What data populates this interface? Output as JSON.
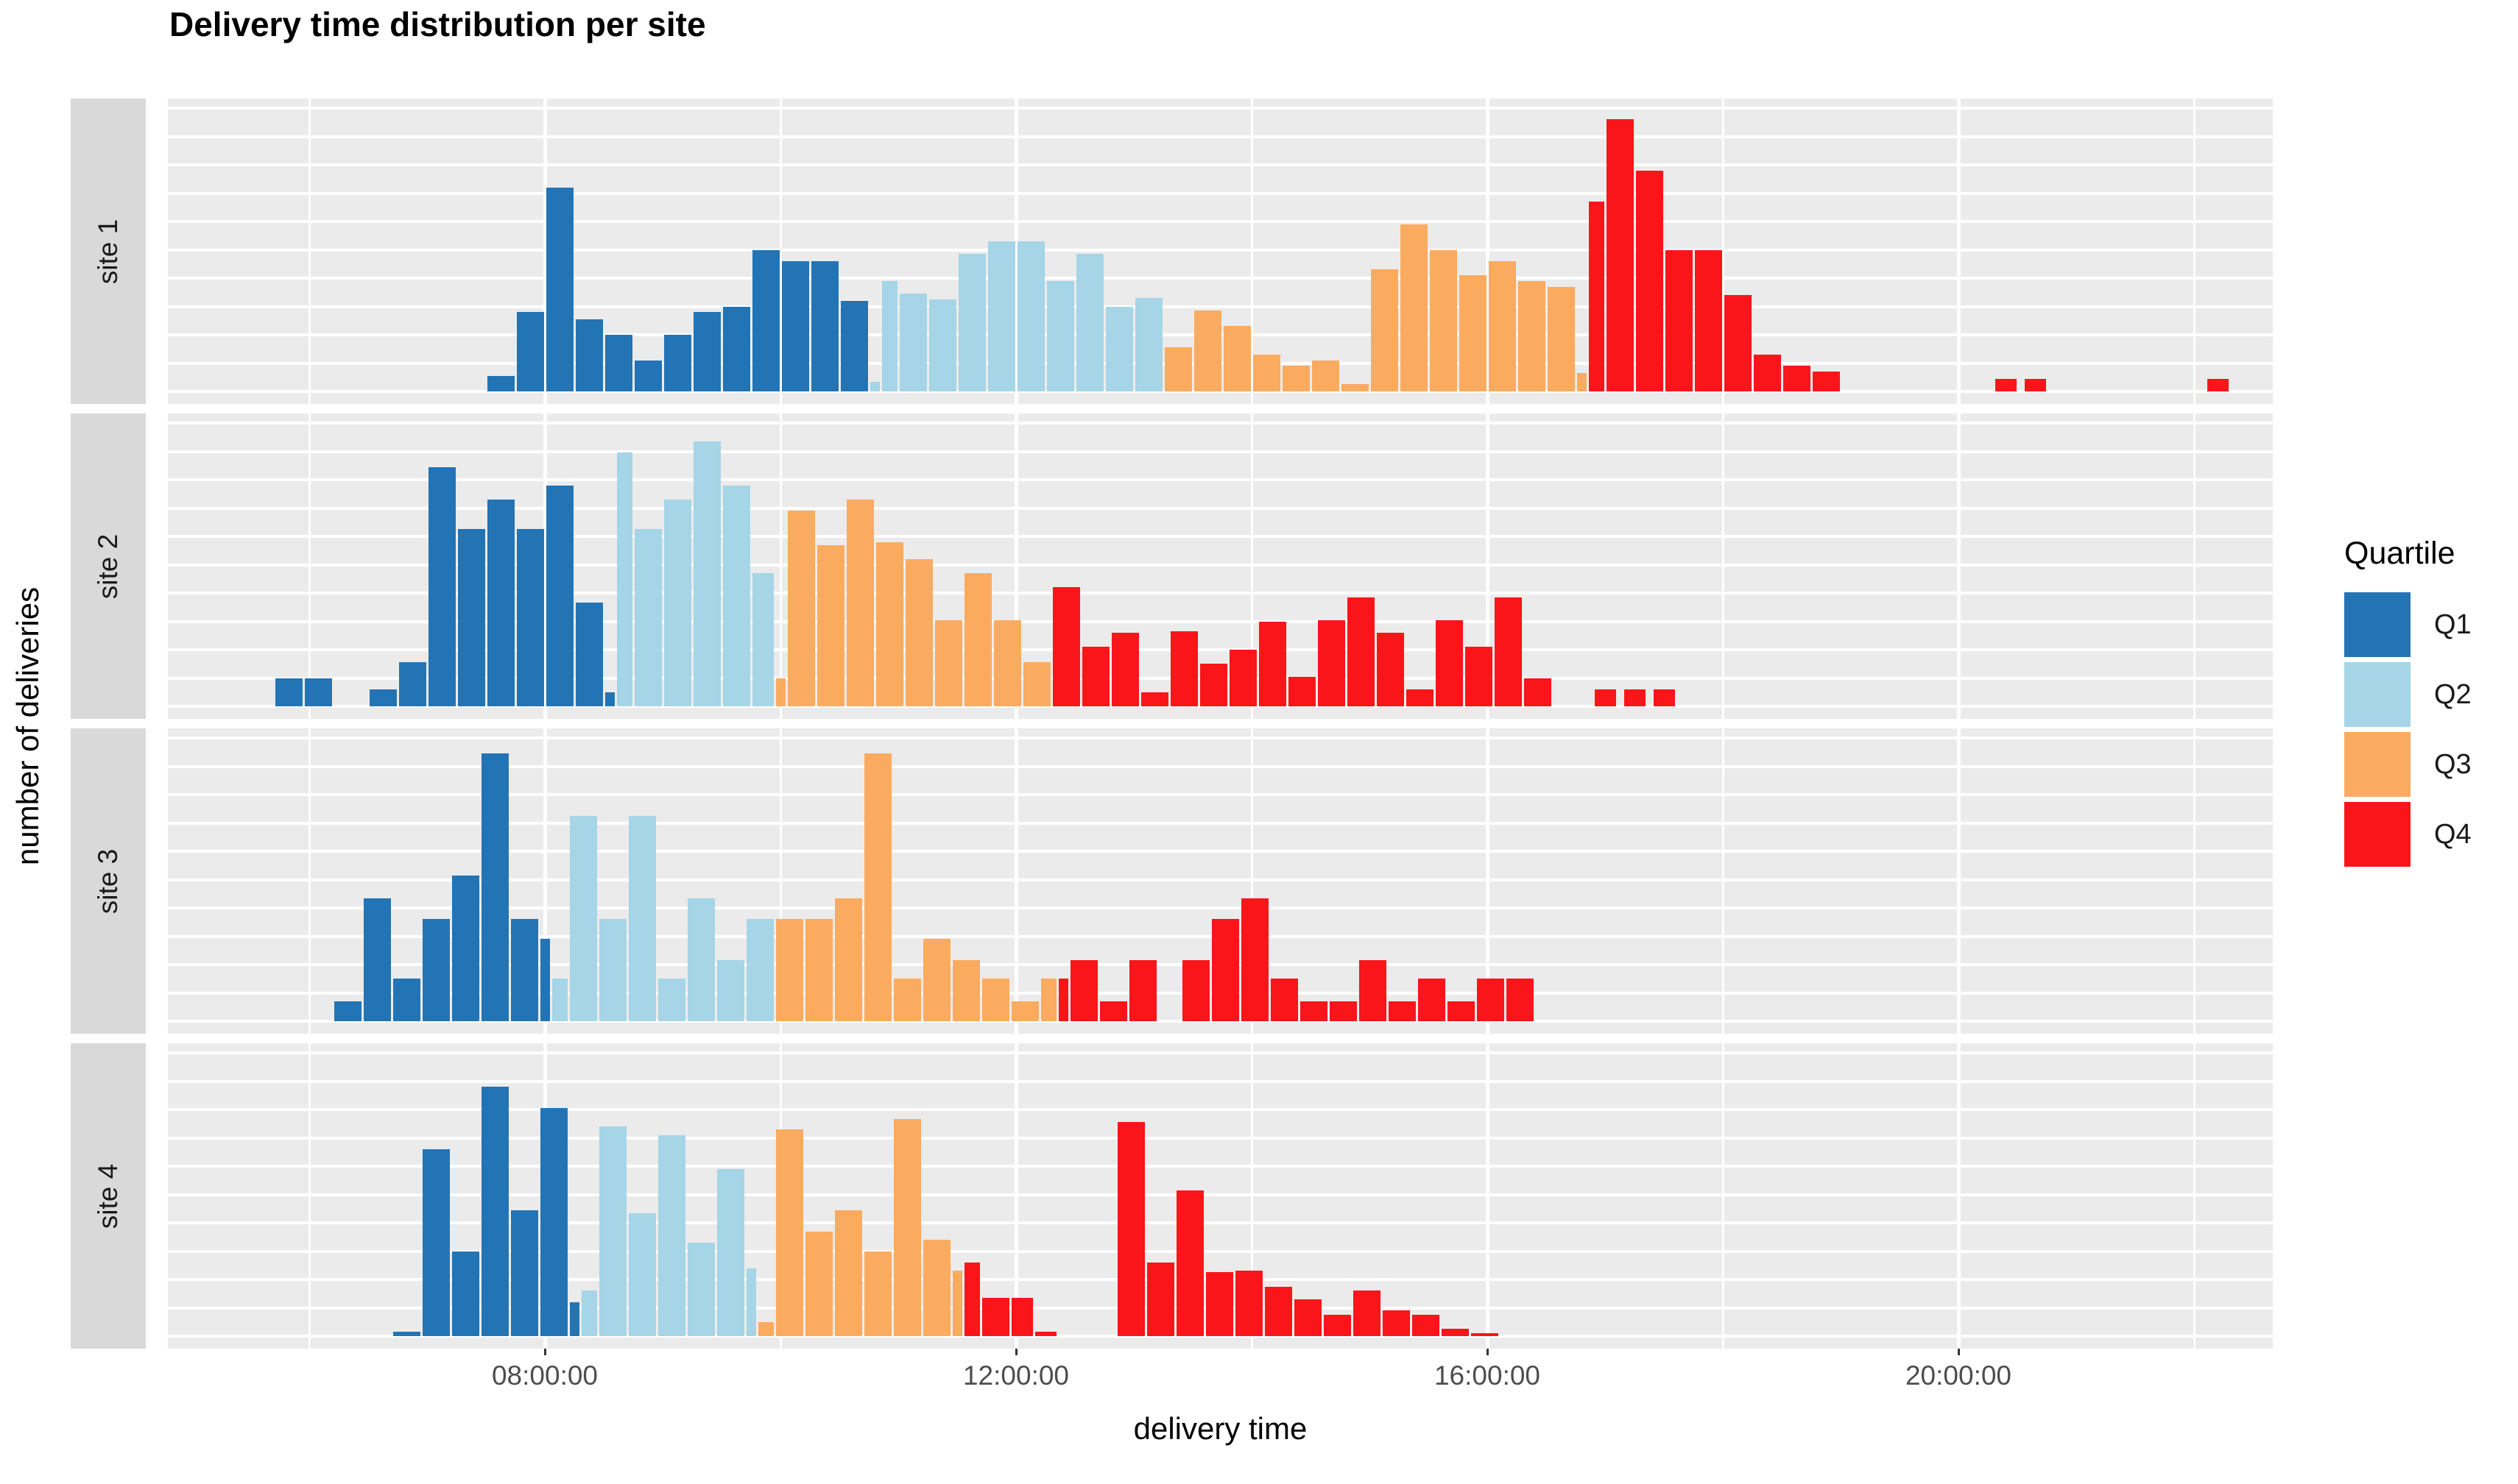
{
  "colors": {
    "panel_bg": "#EBEBEB",
    "strip_bg": "#D9D9D9",
    "gridline": "#FFFFFF",
    "tick_label": "#4D4D4D",
    "q1": "#2374B5",
    "q2": "#A5D5E6",
    "q3": "#FBAB5F",
    "q4": "#F9151A"
  },
  "chart_data": {
    "type": "bar",
    "subtype": "faceted-histogram",
    "title": "Delivery time distribution per site",
    "xlabel": "delivery time",
    "ylabel": "number of deliveries",
    "legend": {
      "title": "Quartile",
      "position": "right",
      "items": [
        {
          "label": "Q1",
          "color_key": "q1"
        },
        {
          "label": "Q2",
          "color_key": "q2"
        },
        {
          "label": "Q3",
          "color_key": "q3"
        },
        {
          "label": "Q4",
          "color_key": "q4"
        }
      ]
    },
    "x_tick_labels": [
      "08:00:00",
      "12:00:00",
      "16:00:00",
      "20:00:00"
    ],
    "x_tick_hours": [
      8,
      12,
      16,
      20
    ],
    "x_domain_hours": [
      4.8,
      22.67
    ],
    "gridlines": {
      "horizontal": "white, evenly spaced, no y tick labels shown",
      "vertical_every_hours": 2
    },
    "bin_minutes": 15,
    "bar_format": "[start_hour, width_hours, height_relative_units, quartile] ; 10 units = full panel height (y axis has no printed tick labels)",
    "facets": [
      {
        "site": "site 1",
        "bars": [
          [
            7.5,
            0.25,
            0.55,
            "Q1"
          ],
          [
            7.75,
            0.25,
            2.8,
            "Q1"
          ],
          [
            8.0,
            0.25,
            7.2,
            "Q1"
          ],
          [
            8.25,
            0.25,
            2.55,
            "Q1"
          ],
          [
            8.5,
            0.25,
            2.0,
            "Q1"
          ],
          [
            8.75,
            0.25,
            1.1,
            "Q1"
          ],
          [
            9.0,
            0.25,
            2.0,
            "Q1"
          ],
          [
            9.25,
            0.25,
            2.8,
            "Q1"
          ],
          [
            9.5,
            0.25,
            3.0,
            "Q1"
          ],
          [
            9.75,
            0.25,
            5.0,
            "Q1"
          ],
          [
            10.0,
            0.25,
            4.6,
            "Q1"
          ],
          [
            10.25,
            0.25,
            4.6,
            "Q1"
          ],
          [
            10.5,
            0.25,
            3.2,
            "Q1"
          ],
          [
            10.75,
            0.1,
            0.35,
            "Q2"
          ],
          [
            10.85,
            0.15,
            3.9,
            "Q2"
          ],
          [
            11.0,
            0.25,
            3.45,
            "Q2"
          ],
          [
            11.25,
            0.25,
            3.25,
            "Q2"
          ],
          [
            11.5,
            0.25,
            4.85,
            "Q2"
          ],
          [
            11.75,
            0.25,
            5.3,
            "Q2"
          ],
          [
            12.0,
            0.25,
            5.3,
            "Q2"
          ],
          [
            12.25,
            0.25,
            3.9,
            "Q2"
          ],
          [
            12.5,
            0.25,
            4.85,
            "Q2"
          ],
          [
            12.75,
            0.25,
            3.0,
            "Q2"
          ],
          [
            13.0,
            0.25,
            3.3,
            "Q2"
          ],
          [
            13.25,
            0.25,
            1.55,
            "Q3"
          ],
          [
            13.5,
            0.25,
            2.85,
            "Q3"
          ],
          [
            13.75,
            0.25,
            2.3,
            "Q3"
          ],
          [
            14.0,
            0.25,
            1.3,
            "Q3"
          ],
          [
            14.25,
            0.25,
            0.9,
            "Q3"
          ],
          [
            14.5,
            0.25,
            1.1,
            "Q3"
          ],
          [
            14.75,
            0.25,
            0.25,
            "Q3"
          ],
          [
            15.0,
            0.25,
            4.3,
            "Q3"
          ],
          [
            15.25,
            0.25,
            5.9,
            "Q3"
          ],
          [
            15.5,
            0.25,
            5.0,
            "Q3"
          ],
          [
            15.75,
            0.25,
            4.1,
            "Q3"
          ],
          [
            16.0,
            0.25,
            4.6,
            "Q3"
          ],
          [
            16.25,
            0.25,
            3.9,
            "Q3"
          ],
          [
            16.5,
            0.25,
            3.7,
            "Q3"
          ],
          [
            16.75,
            0.1,
            0.65,
            "Q3"
          ],
          [
            16.85,
            0.15,
            6.7,
            "Q4"
          ],
          [
            17.0,
            0.25,
            9.6,
            "Q4"
          ],
          [
            17.25,
            0.25,
            7.8,
            "Q4"
          ],
          [
            17.5,
            0.25,
            5.0,
            "Q4"
          ],
          [
            17.75,
            0.25,
            5.0,
            "Q4"
          ],
          [
            18.0,
            0.25,
            3.4,
            "Q4"
          ],
          [
            18.25,
            0.25,
            1.3,
            "Q4"
          ],
          [
            18.5,
            0.25,
            0.9,
            "Q4"
          ],
          [
            18.75,
            0.25,
            0.7,
            "Q4"
          ],
          [
            20.3,
            0.2,
            0.45,
            "Q4"
          ],
          [
            20.55,
            0.2,
            0.45,
            "Q4"
          ],
          [
            22.1,
            0.2,
            0.45,
            "Q4"
          ]
        ]
      },
      {
        "site": "site 2",
        "bars": [
          [
            5.7,
            0.25,
            1.0,
            "Q1"
          ],
          [
            5.95,
            0.25,
            1.0,
            "Q1"
          ],
          [
            6.5,
            0.25,
            0.6,
            "Q1"
          ],
          [
            6.75,
            0.25,
            1.55,
            "Q1"
          ],
          [
            7.0,
            0.25,
            8.45,
            "Q1"
          ],
          [
            7.25,
            0.25,
            6.25,
            "Q1"
          ],
          [
            7.5,
            0.25,
            7.3,
            "Q1"
          ],
          [
            7.75,
            0.25,
            6.25,
            "Q1"
          ],
          [
            8.0,
            0.25,
            7.8,
            "Q1"
          ],
          [
            8.25,
            0.25,
            3.65,
            "Q1"
          ],
          [
            8.5,
            0.1,
            0.5,
            "Q1"
          ],
          [
            8.6,
            0.15,
            8.95,
            "Q2"
          ],
          [
            8.75,
            0.25,
            6.25,
            "Q2"
          ],
          [
            9.0,
            0.25,
            7.3,
            "Q2"
          ],
          [
            9.25,
            0.25,
            9.35,
            "Q2"
          ],
          [
            9.5,
            0.25,
            7.8,
            "Q2"
          ],
          [
            9.75,
            0.2,
            4.7,
            "Q2"
          ],
          [
            9.95,
            0.1,
            1.0,
            "Q3"
          ],
          [
            10.05,
            0.25,
            6.9,
            "Q3"
          ],
          [
            10.3,
            0.25,
            5.7,
            "Q3"
          ],
          [
            10.55,
            0.25,
            7.3,
            "Q3"
          ],
          [
            10.8,
            0.25,
            5.8,
            "Q3"
          ],
          [
            11.05,
            0.25,
            5.2,
            "Q3"
          ],
          [
            11.3,
            0.25,
            3.05,
            "Q3"
          ],
          [
            11.55,
            0.25,
            4.7,
            "Q3"
          ],
          [
            11.8,
            0.25,
            3.05,
            "Q3"
          ],
          [
            12.05,
            0.25,
            1.55,
            "Q3"
          ],
          [
            12.3,
            0.25,
            4.2,
            "Q4"
          ],
          [
            12.55,
            0.25,
            2.1,
            "Q4"
          ],
          [
            12.8,
            0.25,
            2.6,
            "Q4"
          ],
          [
            13.05,
            0.25,
            0.5,
            "Q4"
          ],
          [
            13.3,
            0.25,
            2.65,
            "Q4"
          ],
          [
            13.55,
            0.25,
            1.5,
            "Q4"
          ],
          [
            13.8,
            0.25,
            2.0,
            "Q4"
          ],
          [
            14.05,
            0.25,
            3.0,
            "Q4"
          ],
          [
            14.3,
            0.25,
            1.05,
            "Q4"
          ],
          [
            14.55,
            0.25,
            3.05,
            "Q4"
          ],
          [
            14.8,
            0.25,
            3.85,
            "Q4"
          ],
          [
            15.05,
            0.25,
            2.6,
            "Q4"
          ],
          [
            15.3,
            0.25,
            0.6,
            "Q4"
          ],
          [
            15.55,
            0.25,
            3.05,
            "Q4"
          ],
          [
            15.8,
            0.25,
            2.1,
            "Q4"
          ],
          [
            16.05,
            0.25,
            3.85,
            "Q4"
          ],
          [
            16.3,
            0.25,
            1.0,
            "Q4"
          ],
          [
            16.9,
            0.2,
            0.6,
            "Q4"
          ],
          [
            17.15,
            0.2,
            0.6,
            "Q4"
          ],
          [
            17.4,
            0.2,
            0.6,
            "Q4"
          ]
        ]
      },
      {
        "site": "site 3",
        "bars": [
          [
            6.2,
            0.25,
            0.7,
            "Q1"
          ],
          [
            6.45,
            0.25,
            4.35,
            "Q1"
          ],
          [
            6.7,
            0.25,
            1.5,
            "Q1"
          ],
          [
            6.95,
            0.25,
            3.6,
            "Q1"
          ],
          [
            7.2,
            0.25,
            5.15,
            "Q1"
          ],
          [
            7.45,
            0.25,
            9.45,
            "Q1"
          ],
          [
            7.7,
            0.25,
            3.6,
            "Q1"
          ],
          [
            7.95,
            0.1,
            2.9,
            "Q1"
          ],
          [
            8.05,
            0.15,
            1.5,
            "Q2"
          ],
          [
            8.2,
            0.25,
            7.25,
            "Q2"
          ],
          [
            8.45,
            0.25,
            3.6,
            "Q2"
          ],
          [
            8.7,
            0.25,
            7.25,
            "Q2"
          ],
          [
            8.95,
            0.25,
            1.5,
            "Q2"
          ],
          [
            9.2,
            0.25,
            4.35,
            "Q2"
          ],
          [
            9.45,
            0.25,
            2.15,
            "Q2"
          ],
          [
            9.7,
            0.25,
            3.6,
            "Q2"
          ],
          [
            9.95,
            0.25,
            3.6,
            "Q3"
          ],
          [
            10.2,
            0.25,
            3.6,
            "Q3"
          ],
          [
            10.45,
            0.25,
            4.35,
            "Q3"
          ],
          [
            10.7,
            0.25,
            9.45,
            "Q3"
          ],
          [
            10.95,
            0.25,
            1.5,
            "Q3"
          ],
          [
            11.2,
            0.25,
            2.9,
            "Q3"
          ],
          [
            11.45,
            0.25,
            2.15,
            "Q3"
          ],
          [
            11.7,
            0.25,
            1.5,
            "Q3"
          ],
          [
            11.95,
            0.25,
            0.7,
            "Q3"
          ],
          [
            12.2,
            0.15,
            1.5,
            "Q3"
          ],
          [
            12.35,
            0.1,
            1.5,
            "Q4"
          ],
          [
            12.45,
            0.25,
            2.15,
            "Q4"
          ],
          [
            12.7,
            0.25,
            0.7,
            "Q4"
          ],
          [
            12.95,
            0.25,
            2.15,
            "Q4"
          ],
          [
            13.4,
            0.25,
            2.15,
            "Q4"
          ],
          [
            13.65,
            0.25,
            3.6,
            "Q4"
          ],
          [
            13.9,
            0.25,
            4.35,
            "Q4"
          ],
          [
            14.15,
            0.25,
            1.5,
            "Q4"
          ],
          [
            14.4,
            0.25,
            0.7,
            "Q4"
          ],
          [
            14.65,
            0.25,
            0.7,
            "Q4"
          ],
          [
            14.9,
            0.25,
            2.15,
            "Q4"
          ],
          [
            15.15,
            0.25,
            0.7,
            "Q4"
          ],
          [
            15.4,
            0.25,
            1.5,
            "Q4"
          ],
          [
            15.65,
            0.25,
            0.7,
            "Q4"
          ],
          [
            15.9,
            0.25,
            1.5,
            "Q4"
          ],
          [
            16.15,
            0.25,
            1.5,
            "Q4"
          ]
        ]
      },
      {
        "site": "site 4",
        "bars": [
          [
            6.7,
            0.25,
            0.15,
            "Q1"
          ],
          [
            6.95,
            0.25,
            6.6,
            "Q1"
          ],
          [
            7.2,
            0.25,
            3.0,
            "Q1"
          ],
          [
            7.45,
            0.25,
            8.8,
            "Q1"
          ],
          [
            7.7,
            0.25,
            4.45,
            "Q1"
          ],
          [
            7.95,
            0.25,
            8.05,
            "Q1"
          ],
          [
            8.2,
            0.1,
            1.2,
            "Q1"
          ],
          [
            8.3,
            0.15,
            1.6,
            "Q2"
          ],
          [
            8.45,
            0.25,
            7.4,
            "Q2"
          ],
          [
            8.7,
            0.25,
            4.35,
            "Q2"
          ],
          [
            8.95,
            0.25,
            7.1,
            "Q2"
          ],
          [
            9.2,
            0.25,
            3.3,
            "Q2"
          ],
          [
            9.45,
            0.25,
            5.9,
            "Q2"
          ],
          [
            9.7,
            0.1,
            2.4,
            "Q2"
          ],
          [
            9.8,
            0.15,
            0.5,
            "Q3"
          ],
          [
            9.95,
            0.25,
            7.3,
            "Q3"
          ],
          [
            10.2,
            0.25,
            3.7,
            "Q3"
          ],
          [
            10.45,
            0.25,
            4.45,
            "Q3"
          ],
          [
            10.7,
            0.25,
            3.0,
            "Q3"
          ],
          [
            10.95,
            0.25,
            7.65,
            "Q3"
          ],
          [
            11.2,
            0.25,
            3.4,
            "Q3"
          ],
          [
            11.45,
            0.1,
            2.3,
            "Q3"
          ],
          [
            11.55,
            0.15,
            2.6,
            "Q4"
          ],
          [
            11.7,
            0.25,
            1.35,
            "Q4"
          ],
          [
            11.95,
            0.2,
            1.35,
            "Q4"
          ],
          [
            12.15,
            0.2,
            0.15,
            "Q4"
          ],
          [
            12.85,
            0.25,
            7.55,
            "Q4"
          ],
          [
            13.1,
            0.25,
            2.6,
            "Q4"
          ],
          [
            13.35,
            0.25,
            5.15,
            "Q4"
          ],
          [
            13.6,
            0.25,
            2.25,
            "Q4"
          ],
          [
            13.85,
            0.25,
            2.3,
            "Q4"
          ],
          [
            14.1,
            0.25,
            1.75,
            "Q4"
          ],
          [
            14.35,
            0.25,
            1.3,
            "Q4"
          ],
          [
            14.6,
            0.25,
            0.75,
            "Q4"
          ],
          [
            14.85,
            0.25,
            1.6,
            "Q4"
          ],
          [
            15.1,
            0.25,
            0.9,
            "Q4"
          ],
          [
            15.35,
            0.25,
            0.75,
            "Q4"
          ],
          [
            15.6,
            0.25,
            0.25,
            "Q4"
          ],
          [
            15.85,
            0.25,
            0.1,
            "Q4"
          ]
        ]
      }
    ]
  }
}
